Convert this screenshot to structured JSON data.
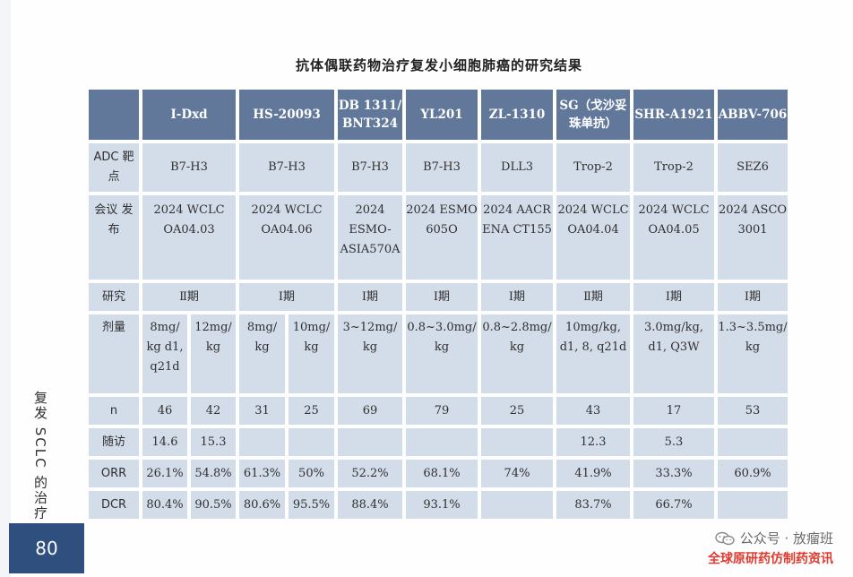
{
  "page": {
    "title": "抗体偶联药物治疗复发小细胞肺癌的研究结果",
    "side_label": "复发 SCLC 的治疗",
    "page_number": "80"
  },
  "watermark": {
    "line1": "公众号 · 放瘤班",
    "line2": "全球原研药仿制药资讯",
    "icon": "wechat-icon"
  },
  "table": {
    "headers": [
      "I-Dxd",
      "HS-20093",
      "DB 1311/ BNT324",
      "YL201",
      "ZL-1310",
      "SG（戈沙妥珠单抗）",
      "SHR-A1921",
      "ABBV-706"
    ],
    "rows": {
      "target": {
        "label": "ADC 靶点",
        "cells": [
          "B7-H3",
          "B7-H3",
          "B7-H3",
          "B7-H3",
          "DLL3",
          "Trop-2",
          "Trop-2",
          "SEZ6"
        ]
      },
      "meeting": {
        "label": "会议 发布",
        "cells": [
          "2024 WCLC OA04.03",
          "2024 WCLC OA04.06",
          "2024 ESMO-ASIA570A",
          "2024 ESMO 605O",
          "2024 AACR ENA CT155",
          "2024 WCLC OA04.04",
          "2024 WCLC OA04.05",
          "2024 ASCO 3001"
        ]
      },
      "phase": {
        "label": "研究",
        "cells": [
          "Ⅱ期",
          "Ⅰ期",
          "Ⅰ期",
          "Ⅰ期",
          "Ⅰ期",
          "Ⅱ期",
          "Ⅰ期",
          "Ⅰ期"
        ]
      },
      "dose": {
        "label": "剂量",
        "cells": [
          "8mg/ kg d1, q21d",
          "12mg/ kg",
          "8mg/ kg",
          "10mg/ kg",
          "3~12mg/ kg",
          "0.8~3.0mg/ kg",
          "0.8~2.8mg/ kg",
          "10mg/kg, d1, 8, q21d",
          "3.0mg/kg, d1, Q3W",
          "1.3~3.5mg/ kg"
        ]
      },
      "n": {
        "label": "n",
        "cells": [
          "46",
          "42",
          "31",
          "25",
          "69",
          "79",
          "25",
          "43",
          "17",
          "53"
        ]
      },
      "followup": {
        "label": "随访",
        "cells": [
          "14.6",
          "15.3",
          "",
          "",
          "",
          "",
          "",
          "12.3",
          "5.3",
          ""
        ]
      },
      "orr": {
        "label": "ORR",
        "cells": [
          "26.1%",
          "54.8%",
          "61.3%",
          "50%",
          "52.2%",
          "68.1%",
          "74%",
          "41.9%",
          "33.3%",
          "60.9%"
        ]
      },
      "dcr": {
        "label": "DCR",
        "cells": [
          "80.4%",
          "90.5%",
          "80.6%",
          "95.5%",
          "88.4%",
          "93.1%",
          "",
          "83.7%",
          "66.7%",
          ""
        ]
      }
    }
  },
  "colors": {
    "header_bg": "#61789b",
    "cell_bg": "#d3dce9",
    "page_box_bg": "#2f4f7f",
    "watermark_red": "#e03a2f"
  }
}
